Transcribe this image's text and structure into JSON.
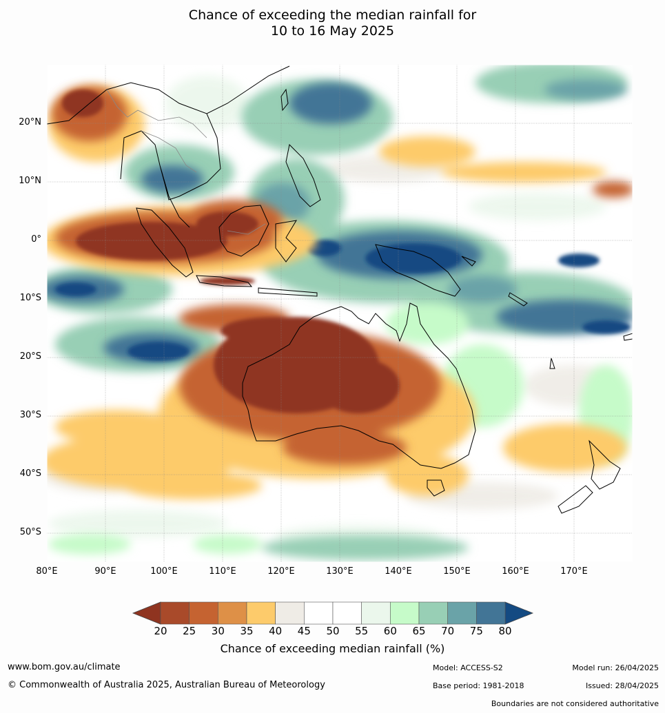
{
  "title": {
    "line1": "Chance of exceeding the median rainfall for",
    "line2": "10 to 16 May 2025"
  },
  "map": {
    "lat_labels": [
      "20°N",
      "10°N",
      "0°",
      "10°S",
      "20°S",
      "30°S",
      "40°S",
      "50°S"
    ],
    "lon_labels": [
      "80°E",
      "90°E",
      "100°E",
      "110°E",
      "120°E",
      "130°E",
      "140°E",
      "150°E",
      "160°E",
      "170°E"
    ],
    "lat_range": [
      -55,
      30
    ],
    "lon_range": [
      80,
      180
    ],
    "grid": true
  },
  "colorbar": {
    "title": "Chance of exceeding median rainfall (%)",
    "ticks": [
      "20",
      "25",
      "30",
      "35",
      "40",
      "45",
      "50",
      "55",
      "60",
      "65",
      "70",
      "75",
      "80"
    ],
    "colors": [
      "#8f3420",
      "#a94a2a",
      "#c56331",
      "#de9047",
      "#fdcb6b",
      "#efece6",
      "#ffffff",
      "#ffffff",
      "#ebf7ec",
      "#c6fbc9",
      "#98cfb5",
      "#6aa3a8",
      "#427596",
      "#144a82"
    ]
  },
  "footer": {
    "website": "www.bom.gov.au/climate",
    "copyright": "© Commonwealth of Australia 2025, Australian Bureau of Meteorology",
    "model": "Model: ACCESS-S2",
    "base_period": "Base period: 1981-2018",
    "model_run": "Model run: 26/04/2025",
    "issued": "Issued: 28/04/2025",
    "disclaimer": "Boundaries are not considered authoritative"
  },
  "icons": {
    "colorbar-low-arrow": "left-triangle",
    "colorbar-high-arrow": "right-triangle"
  }
}
